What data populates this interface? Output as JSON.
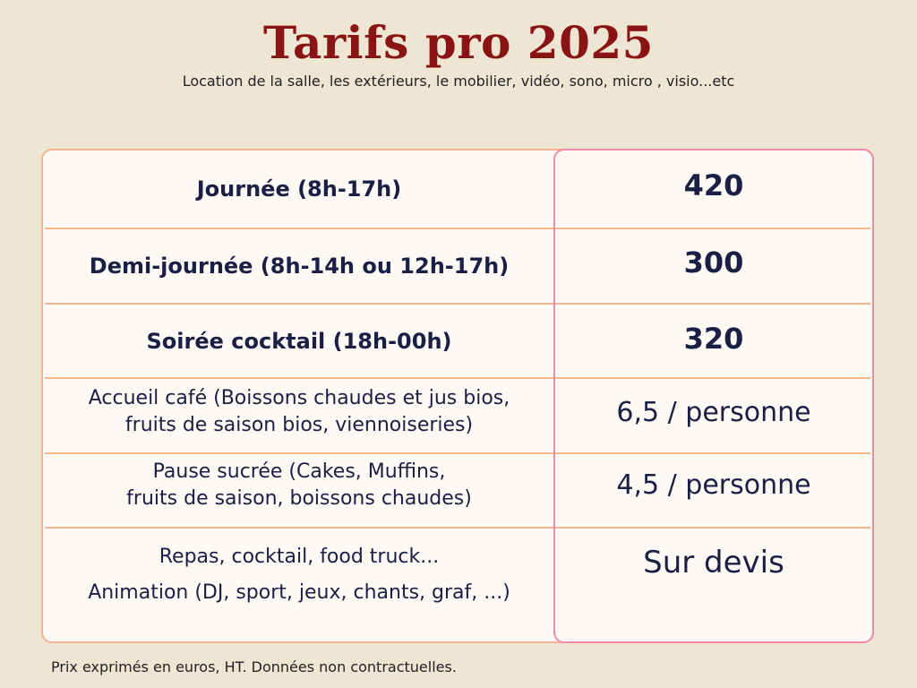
{
  "header": {
    "title": "Tarifs pro 2025",
    "subtitle": "Location de la salle, les extérieurs, le mobilier, vidéo, sono, micro , visio...etc"
  },
  "rows": [
    {
      "label_lines": [
        "Journée (8h-17h)"
      ],
      "price": "420"
    },
    {
      "label_lines": [
        "Demi-journée (8h-14h ou 12h-17h)"
      ],
      "price": "300"
    },
    {
      "label_lines": [
        "Soirée cocktail (18h-00h)"
      ],
      "price": "320"
    },
    {
      "label_lines": [
        "Accueil café (Boissons chaudes et jus bios,",
        "fruits de saison bios, viennoiseries)"
      ],
      "price": "6,5 / personne"
    },
    {
      "label_lines": [
        "Pause sucrée (Cakes, Muffins,",
        "fruits de saison, boissons chaudes)"
      ],
      "price": "4,5 / personne"
    },
    {
      "label_lines": [
        "Repas, cocktail, food truck...",
        "Animation (DJ, sport, jeux, chants, graf, ...)"
      ],
      "price": "Sur devis"
    }
  ],
  "footer": {
    "note": "Prix exprimés en euros, HT. Données non contractuelles."
  },
  "colors": {
    "background": "#EEE5D3",
    "title": "#8A1313",
    "text": "#1C1F45",
    "table_border": "#F6B391",
    "price_column_border": "#EE8AA8"
  }
}
